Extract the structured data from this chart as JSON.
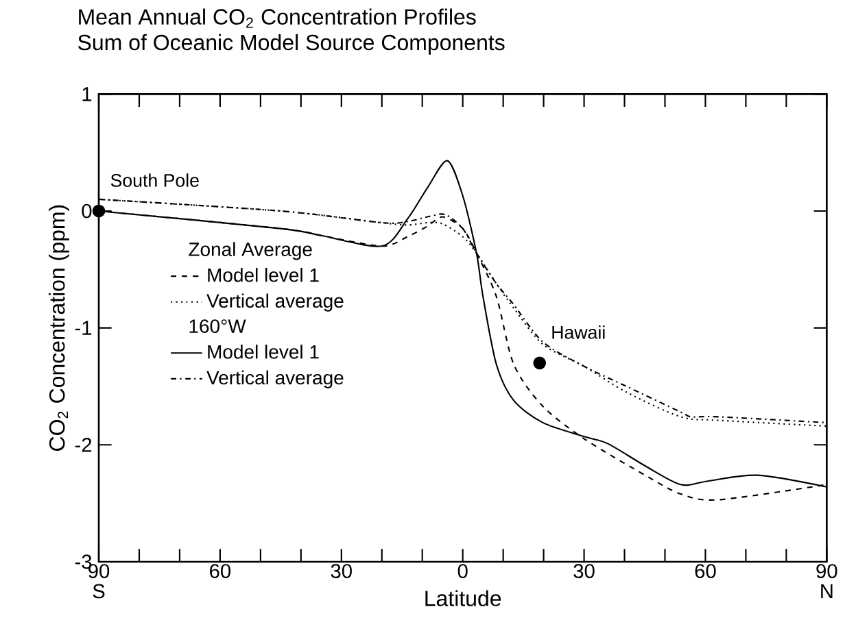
{
  "chart_data": {
    "type": "line",
    "title": "Mean Annual CO$_{2}$ Concentration Profiles",
    "subtitle": "Sum of Oceanic Model Source Components",
    "xlabel": "Latitude",
    "ylabel": "CO$_{2}$ Concentration (ppm)",
    "xlim": [
      -90,
      90
    ],
    "ylim": [
      -3,
      1
    ],
    "xticks": [
      {
        "value": -90,
        "label": "90 S"
      },
      {
        "value": -80,
        "label": null
      },
      {
        "value": -70,
        "label": null
      },
      {
        "value": -60,
        "label": "60"
      },
      {
        "value": -50,
        "label": null
      },
      {
        "value": -40,
        "label": null
      },
      {
        "value": -30,
        "label": "30"
      },
      {
        "value": -20,
        "label": null
      },
      {
        "value": -10,
        "label": null
      },
      {
        "value": 0,
        "label": "0"
      },
      {
        "value": 10,
        "label": null
      },
      {
        "value": 20,
        "label": null
      },
      {
        "value": 30,
        "label": "30"
      },
      {
        "value": 40,
        "label": null
      },
      {
        "value": 50,
        "label": null
      },
      {
        "value": 60,
        "label": "60"
      },
      {
        "value": 70,
        "label": null
      },
      {
        "value": 80,
        "label": null
      },
      {
        "value": 90,
        "label": "90 N"
      }
    ],
    "yticks": [
      -3,
      -2,
      -1,
      0,
      1
    ],
    "legend": "left",
    "annotations": [
      "Zonal Average",
      "160°W",
      {
        "text": "South Pole",
        "x": -90,
        "y": 0
      },
      {
        "text": "Hawaii",
        "x": 19,
        "y": -1.3
      }
    ],
    "series": [
      {
        "name": "Model level 1",
        "color": "#000000",
        "line_style": "dashed",
        "x": [
          -90,
          -45,
          -35,
          -20,
          -13.7,
          -8.7,
          -5,
          0,
          3.4,
          8.3,
          12.6,
          19.8,
          30.1,
          45.1,
          53.9,
          63.2,
          90
        ],
        "values": [
          0,
          -0.15,
          -0.21,
          -0.3,
          -0.22,
          -0.13,
          -0.05,
          -0.15,
          -0.36,
          -0.73,
          -1.31,
          -1.67,
          -1.95,
          -2.26,
          -2.42,
          -2.47,
          -2.34
        ]
      },
      {
        "name": "Vertical average",
        "color": "#000000",
        "line_style": "dotted",
        "x": [
          -90,
          -45,
          -20,
          -13.7,
          -8.7,
          -5,
          0,
          3.4,
          8.3,
          12.6,
          19.8,
          30.1,
          40.5,
          53.9,
          63.2,
          90
        ],
        "values": [
          0.1,
          0,
          -0.1,
          -0.12,
          -0.1,
          -0.11,
          -0.22,
          -0.36,
          -0.62,
          -0.83,
          -1.14,
          -1.33,
          -1.55,
          -1.76,
          -1.79,
          -1.84
        ]
      },
      {
        "name": "Model level 1",
        "color": "#000000",
        "line_style": "solid",
        "x": [
          -90,
          -45,
          -35,
          -20,
          -13.7,
          -8.7,
          -3.8,
          0,
          3.4,
          5,
          8.3,
          12.6,
          19.8,
          30.1,
          35.9,
          45.1,
          53.9,
          60.6,
          72.9,
          90
        ],
        "values": [
          0,
          -0.15,
          -0.21,
          -0.3,
          -0.07,
          0.2,
          0.43,
          0.13,
          -0.36,
          -0.73,
          -1.31,
          -1.62,
          -1.81,
          -1.93,
          -1.99,
          -2.18,
          -2.34,
          -2.31,
          -2.26,
          -2.36
        ]
      },
      {
        "name": "Vertical average",
        "color": "#000000",
        "line_style": "dashdot",
        "x": [
          -90,
          -45,
          -20,
          -13.7,
          -8.7,
          -4.4,
          0,
          3.4,
          8.3,
          12.6,
          19.8,
          30.1,
          40.5,
          53.9,
          56.5,
          63.2,
          90
        ],
        "values": [
          0.1,
          0,
          -0.1,
          -0.09,
          -0.05,
          -0.03,
          -0.15,
          -0.36,
          -0.62,
          -0.8,
          -1.12,
          -1.33,
          -1.5,
          -1.72,
          -1.76,
          -1.76,
          -1.81
        ]
      },
      {
        "type": "scatter",
        "color": "#000000",
        "marker": "circle",
        "x": [
          -90
        ],
        "values": [
          0
        ]
      },
      {
        "type": "scatter",
        "color": "#000000",
        "marker": "circle",
        "x": [
          19
        ],
        "values": [
          -1.3
        ]
      }
    ]
  }
}
